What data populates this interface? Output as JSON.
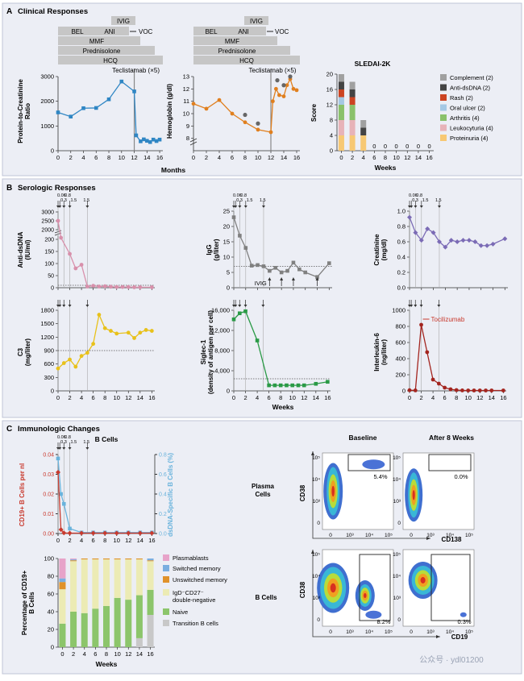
{
  "panels": {
    "A": {
      "letter": "A",
      "title": "Clinical Responses"
    },
    "B": {
      "letter": "B",
      "title": "Serologic Responses"
    },
    "C": {
      "letter": "C",
      "title": "Immunologic Changes"
    }
  },
  "colors": {
    "panel_bg": "#eceef5",
    "blue": "#2f86c4",
    "orange": "#e07f1e",
    "pink": "#d890ab",
    "yellow": "#e8c11a",
    "gray_series": "#808080",
    "green": "#2a9a46",
    "purple": "#7b6bb5",
    "darkred": "#a3251f",
    "red": "#c93a2e",
    "light_blue": "#6ab3dc",
    "bar_gray": "#c6c6c6"
  },
  "treatment": {
    "bars": [
      "IVIG",
      "BEL",
      "ANI",
      "MMF",
      "Prednisolone",
      "HCQ"
    ],
    "voc": "VOC",
    "teclistamab": "Teclistamab (×5)"
  },
  "axis_text": {
    "months": "Months",
    "weeks": "Weeks"
  },
  "dosing_labels": [
    "0.06",
    "0.3",
    "0.8",
    "1.5",
    "1.5"
  ],
  "chart_data": [
    {
      "id": "A1",
      "type": "line",
      "ylabel": "Protein-to-Creatinine Ratio",
      "xlabel": "Months",
      "x": [
        0,
        2,
        4,
        6,
        8,
        10,
        12,
        12.3,
        13,
        13.5,
        14,
        14.5,
        15,
        15.5,
        16
      ],
      "values": [
        1550,
        1380,
        1720,
        1730,
        2080,
        2800,
        2400,
        620,
        380,
        460,
        400,
        350,
        450,
        390,
        450
      ],
      "ylim": [
        0,
        3000
      ],
      "yticks": [
        0,
        1000,
        2000,
        3000
      ],
      "xticks": [
        0,
        2,
        4,
        6,
        8,
        10,
        12,
        14,
        16
      ]
    },
    {
      "id": "A2",
      "type": "line",
      "ylabel": "Hemoglobin (g/dl)",
      "x": [
        0,
        2,
        4,
        6,
        8,
        10,
        12,
        12.3,
        12.8,
        13.3,
        14,
        14.5,
        15,
        15.5,
        16
      ],
      "values": [
        10.8,
        10.4,
        11.1,
        10.0,
        9.3,
        8.7,
        8.5,
        11.0,
        12.0,
        11.5,
        11.4,
        12.3,
        12.8,
        12.0,
        11.9
      ],
      "ylim": [
        7,
        13
      ],
      "yticks": [
        8,
        9,
        10,
        11,
        12,
        13
      ],
      "xticks": [
        0,
        2,
        4,
        6,
        8,
        10,
        12,
        14,
        16
      ]
    },
    {
      "id": "A3",
      "type": "bar",
      "title": "SLEDAI-2K",
      "ylabel": "Score",
      "xlabel": "Weeks",
      "categories": [
        "0",
        "2",
        "4",
        "6",
        "8",
        "10",
        "12",
        "14",
        "16"
      ],
      "series": [
        {
          "name": "Proteinuria (4)",
          "color": "#f7c873",
          "values": [
            4,
            4,
            4,
            0,
            0,
            0,
            0,
            0,
            0
          ]
        },
        {
          "name": "Leukocyturia (4)",
          "color": "#e7b3b8",
          "values": [
            4,
            4,
            0,
            0,
            0,
            0,
            0,
            0,
            0
          ]
        },
        {
          "name": "Arthritis (4)",
          "color": "#8ac16a",
          "values": [
            4,
            4,
            0,
            0,
            0,
            0,
            0,
            0,
            0
          ]
        },
        {
          "name": "Oral ulcer (2)",
          "color": "#a5c8e4",
          "values": [
            2,
            0,
            0,
            0,
            0,
            0,
            0,
            0,
            0
          ]
        },
        {
          "name": "Rash (2)",
          "color": "#cc4422",
          "values": [
            2,
            2,
            0,
            0,
            0,
            0,
            0,
            0,
            0
          ]
        },
        {
          "name": "Anti-dsDNA (2)",
          "color": "#444444",
          "values": [
            2,
            2,
            2,
            0,
            0,
            0,
            0,
            0,
            0
          ]
        },
        {
          "name": "Complement (2)",
          "color": "#a0a0a0",
          "values": [
            2,
            2,
            2,
            0,
            0,
            0,
            0,
            0,
            0
          ]
        }
      ],
      "zero_labels": [
        "0",
        "0",
        "0",
        "0",
        "0",
        "0"
      ],
      "ylim": [
        0,
        20
      ],
      "yticks": [
        0,
        4,
        8,
        12,
        16,
        20
      ],
      "xticks": [
        0,
        2,
        4,
        6,
        8,
        10,
        12,
        14,
        16
      ]
    },
    {
      "id": "B1",
      "type": "line",
      "ylabel": "Anti-dsDNA (IU/ml)",
      "x": [
        0,
        0.5,
        2,
        3,
        4,
        5,
        6,
        7,
        8,
        9,
        10,
        11,
        12,
        13,
        14,
        16
      ],
      "values": [
        2500,
        1650,
        140,
        80,
        95,
        5,
        8,
        5,
        6,
        4,
        3,
        3,
        3,
        2,
        2,
        2
      ],
      "ylim": [
        0,
        3000
      ],
      "yticks": [
        0,
        50,
        100,
        150,
        200,
        2000,
        2500,
        3000
      ],
      "ref": 10
    },
    {
      "id": "B2",
      "type": "line",
      "ylabel": "IgG (g/liter)",
      "x": [
        0,
        1,
        2,
        3,
        4,
        5,
        6,
        7,
        8,
        9,
        10,
        11,
        12,
        14,
        16
      ],
      "values": [
        23,
        17,
        13,
        7.2,
        7.4,
        7,
        5.5,
        6.5,
        5,
        5.5,
        8.2,
        6,
        5,
        3.5,
        8
      ],
      "ylim": [
        0,
        25
      ],
      "yticks": [
        0,
        5,
        10,
        15,
        20,
        25
      ],
      "ref": 7,
      "ivig_label": "IVIG",
      "ivig_at": [
        6,
        8,
        10,
        14
      ]
    },
    {
      "id": "B3",
      "type": "line",
      "ylabel": "Creatinine (mg/dl)",
      "x": [
        0,
        1,
        2,
        3,
        4,
        5,
        6,
        7,
        8,
        9,
        10,
        11,
        12,
        13,
        14,
        16
      ],
      "values": [
        0.92,
        0.72,
        0.62,
        0.77,
        0.72,
        0.6,
        0.53,
        0.62,
        0.6,
        0.62,
        0.62,
        0.6,
        0.55,
        0.55,
        0.57,
        0.64
      ],
      "ylim": [
        0,
        1.0
      ],
      "yticks": [
        0,
        0.2,
        0.4,
        0.6,
        0.8,
        1.0
      ]
    },
    {
      "id": "B4",
      "type": "line",
      "ylabel": "C3 (mg/liter)",
      "xlabel": "",
      "x": [
        0,
        1,
        2,
        3,
        4,
        5,
        6,
        7,
        8,
        9,
        10,
        12,
        13,
        14,
        15,
        16
      ],
      "values": [
        500,
        620,
        700,
        540,
        780,
        850,
        1050,
        1700,
        1400,
        1340,
        1280,
        1300,
        1180,
        1300,
        1360,
        1340
      ],
      "ylim": [
        0,
        1800
      ],
      "yticks": [
        0,
        300,
        600,
        900,
        1200,
        1500,
        1800
      ],
      "ref": 900
    },
    {
      "id": "B5",
      "type": "line",
      "ylabel": "Siglec-1 (density of antigen per cell)",
      "xlabel": "Weeks",
      "x": [
        0,
        1,
        2,
        4,
        6,
        7,
        8,
        9,
        10,
        11,
        12,
        14,
        16
      ],
      "values": [
        14200,
        15400,
        15800,
        10000,
        1100,
        1100,
        1100,
        1100,
        1100,
        1100,
        1100,
        1400,
        1800
      ],
      "ylim": [
        0,
        16000
      ],
      "yticks": [
        0,
        4000,
        8000,
        12000,
        16000
      ],
      "ref": 2400
    },
    {
      "id": "B6",
      "type": "line",
      "ylabel": "Interleukin-6 (ng/liter)",
      "x": [
        0,
        1,
        2,
        3,
        4,
        5,
        6,
        7,
        8,
        9,
        10,
        11,
        12,
        13,
        14,
        16
      ],
      "values": [
        8,
        6,
        820,
        480,
        140,
        90,
        40,
        20,
        10,
        6,
        5,
        5,
        5,
        5,
        5,
        5
      ],
      "ylim": [
        0,
        1000
      ],
      "yticks": [
        0,
        200,
        400,
        600,
        800,
        1000
      ],
      "annotation": "Tocilizumab"
    },
    {
      "id": "C1",
      "type": "line",
      "title": "B Cells",
      "ylabel": "CD19+ B Cells per nl",
      "y2label": "dsDNA-Specific B Cells (%)",
      "x": [
        0,
        0.5,
        1,
        2,
        4,
        6,
        8,
        10,
        12,
        14,
        16
      ],
      "series": [
        {
          "name": "CD19+ B Cells per nl",
          "axis": "left",
          "values": [
            0.031,
            0.002,
            0.0003,
            0.0002,
            0.0002,
            0.0002,
            0.0002,
            0.0002,
            0.0002,
            0.0002,
            0.0002
          ]
        },
        {
          "name": "dsDNA-Specific B Cells (%)",
          "axis": "right",
          "values": [
            0.76,
            0.4,
            0.3,
            0.05,
            0.01,
            0.01,
            0.01,
            0.01,
            0.01,
            0.01,
            0.01
          ]
        }
      ],
      "ylim": [
        0,
        0.04
      ],
      "yticks": [
        "0.00",
        "0.01",
        "0.02",
        "0.03",
        "0.04"
      ],
      "y2lim": [
        0,
        0.8
      ],
      "y2ticks": [
        "0.0",
        "0.2",
        "0.4",
        "0.6",
        "0.8"
      ]
    },
    {
      "id": "C2",
      "type": "bar",
      "ylabel": "Percentage of CD19+ B Cells",
      "xlabel": "Weeks",
      "categories": [
        "0",
        "2",
        "4",
        "6",
        "8",
        "10",
        "12",
        "14",
        "16"
      ],
      "series": [
        {
          "name": "Transition B cells",
          "color": "#c8c8c8",
          "values": [
            0,
            0,
            0,
            0,
            0,
            0,
            0,
            10,
            36
          ]
        },
        {
          "name": "Naive",
          "color": "#8cc56b",
          "values": [
            26,
            40,
            38,
            43,
            46,
            55,
            53,
            48,
            28
          ]
        },
        {
          "name": "IgD−CD27− double-negative",
          "color": "#ecebb4",
          "values": [
            38,
            57,
            60,
            55,
            52,
            43,
            45,
            40,
            32
          ]
        },
        {
          "name": "Unswitched memory",
          "color": "#e0922a",
          "values": [
            8,
            1,
            1,
            1,
            1,
            1,
            1,
            1,
            1
          ]
        },
        {
          "name": "Switched memory",
          "color": "#7aaee0",
          "values": [
            4,
            1,
            0,
            0,
            0,
            0,
            0,
            0,
            2
          ]
        },
        {
          "name": "Plasmablasts",
          "color": "#e7a3c9",
          "values": [
            22,
            1,
            0,
            0,
            0,
            0,
            0,
            0,
            0
          ]
        }
      ],
      "ylim": [
        0,
        100
      ],
      "yticks": [
        0,
        20,
        40,
        60,
        80,
        100
      ]
    },
    {
      "id": "C3",
      "type": "scatter",
      "row_labels": [
        "Plasma Cells",
        "B Cells"
      ],
      "col_labels": [
        "Baseline",
        "After 8 Weeks"
      ],
      "xlabels": [
        "CD138",
        "CD19"
      ],
      "ylabel": "CD38",
      "gates": [
        "5.4%",
        "0.0%",
        "8.2%",
        "0.3%"
      ],
      "tick_labels": {
        "y": [
          "10⁵",
          "10⁴",
          "10³",
          "0"
        ],
        "x": [
          "0",
          "10³",
          "10⁴",
          "10⁵"
        ]
      }
    }
  ],
  "watermark": "公众号 · ydl01200"
}
